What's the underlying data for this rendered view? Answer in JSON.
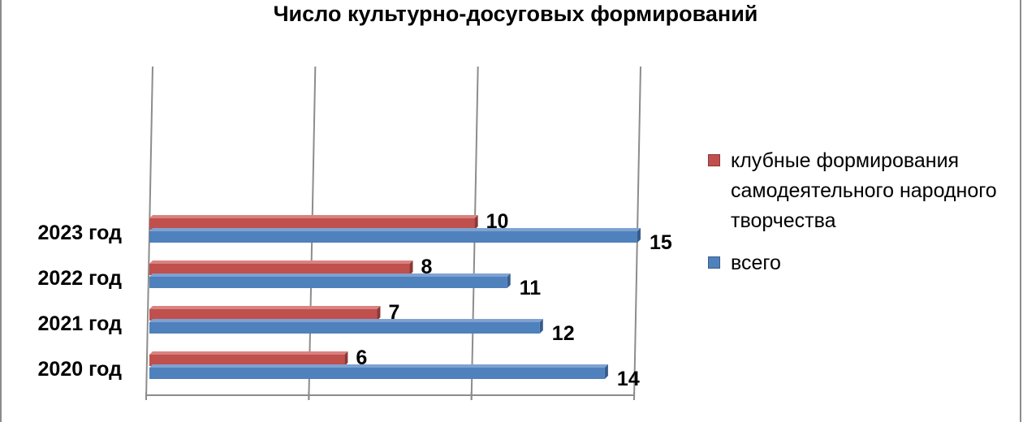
{
  "chart_data": {
    "type": "bar",
    "orientation": "horizontal",
    "title": "Число культурно-досуговых формирований",
    "categories": [
      "2020 год",
      "2021 год",
      "2022 год",
      "2023 год"
    ],
    "series": [
      {
        "name": "клубные формирования самодеятельного народного творчества",
        "values": [
          6,
          7,
          8,
          10
        ],
        "color": "#c0504d"
      },
      {
        "name": "всего",
        "values": [
          14,
          12,
          11,
          15
        ],
        "color": "#4f81bd"
      }
    ],
    "xlim": [
      0,
      15
    ],
    "grid": true,
    "legend_position": "right",
    "data_labels": true
  }
}
